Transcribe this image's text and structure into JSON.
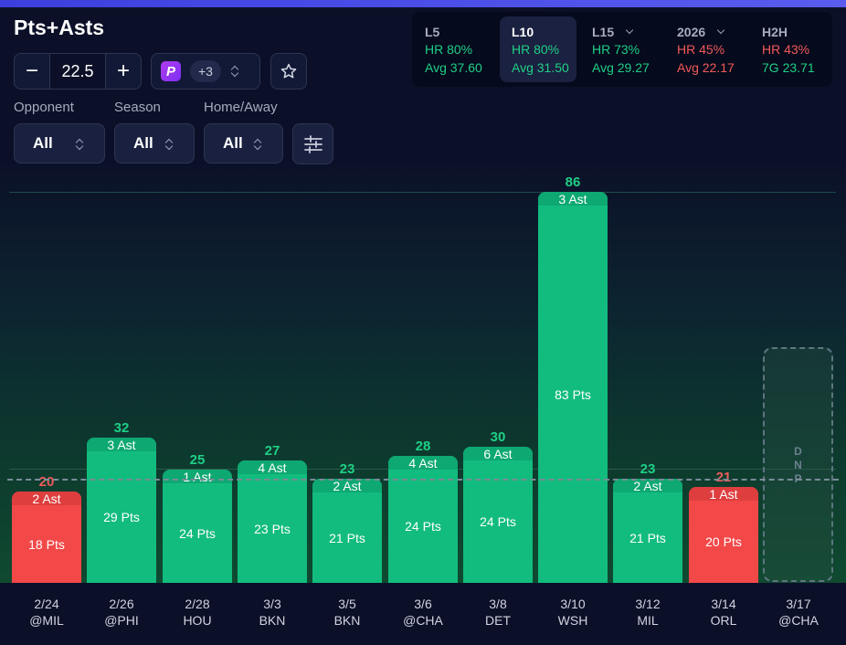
{
  "header": {
    "title": "Pts+Asts",
    "line_value": "22.5",
    "minus_label": "−",
    "plus_label": "+",
    "book_more": "+3"
  },
  "filters": [
    {
      "label": "Opponent",
      "value": "All"
    },
    {
      "label": "Season",
      "value": "All"
    },
    {
      "label": "Home/Away",
      "value": "All"
    }
  ],
  "stats": [
    {
      "label": "L5",
      "hr": "HR 80%",
      "avg": "Avg 37.60",
      "hr_color": "green",
      "avg_color": "green",
      "dropdown": false
    },
    {
      "label": "L10",
      "hr": "HR 80%",
      "avg": "Avg 31.50",
      "hr_color": "green",
      "avg_color": "green",
      "dropdown": false
    },
    {
      "label": "L15",
      "hr": "HR 73%",
      "avg": "Avg 29.27",
      "hr_color": "green",
      "avg_color": "green",
      "dropdown": true
    },
    {
      "label": "2026",
      "hr": "HR 45%",
      "avg": "Avg 22.17",
      "hr_color": "red",
      "avg_color": "red",
      "dropdown": true
    },
    {
      "label": "H2H",
      "hr": "HR 43%",
      "avg": "7G 23.71",
      "hr_color": "red",
      "avg_color": "green",
      "dropdown": false
    }
  ],
  "colors": {
    "over": "#12bc7e",
    "under": "#f24848",
    "over_text": "#1fcf86",
    "under_text": "#f25a5a"
  },
  "chart_data": {
    "type": "bar",
    "title": "Pts+Asts",
    "line": 22.5,
    "ylim": [
      0,
      86
    ],
    "categories": [
      "2/24 @MIL",
      "2/26 @PHI",
      "2/28 HOU",
      "3/3 BKN",
      "3/5 BKN",
      "3/6 @CHA",
      "3/8 DET",
      "3/10 WSH",
      "3/12 MIL",
      "3/14 ORL",
      "3/17 @CHA"
    ],
    "games": [
      {
        "date": "2/24",
        "opp": "@MIL",
        "total": "20",
        "total_num": 20,
        "ast": "2 Ast",
        "pts": "18 Pts",
        "result": "under"
      },
      {
        "date": "2/26",
        "opp": "@PHI",
        "total": "32",
        "total_num": 32,
        "ast": "3 Ast",
        "pts": "29 Pts",
        "result": "over"
      },
      {
        "date": "2/28",
        "opp": "HOU",
        "total": "25",
        "total_num": 25,
        "ast": "1 Ast",
        "pts": "24 Pts",
        "result": "over"
      },
      {
        "date": "3/3",
        "opp": "BKN",
        "total": "27",
        "total_num": 27,
        "ast": "4 Ast",
        "pts": "23 Pts",
        "result": "over"
      },
      {
        "date": "3/5",
        "opp": "BKN",
        "total": "23",
        "total_num": 23,
        "ast": "2 Ast",
        "pts": "21 Pts",
        "result": "over"
      },
      {
        "date": "3/6",
        "opp": "@CHA",
        "total": "28",
        "total_num": 28,
        "ast": "4 Ast",
        "pts": "24 Pts",
        "result": "over"
      },
      {
        "date": "3/8",
        "opp": "DET",
        "total": "30",
        "total_num": 30,
        "ast": "6 Ast",
        "pts": "24 Pts",
        "result": "over"
      },
      {
        "date": "3/10",
        "opp": "WSH",
        "total": "86",
        "total_num": 86,
        "ast": "3 Ast",
        "pts": "83 Pts",
        "result": "over"
      },
      {
        "date": "3/12",
        "opp": "MIL",
        "total": "23",
        "total_num": 23,
        "ast": "2 Ast",
        "pts": "21 Pts",
        "result": "over"
      },
      {
        "date": "3/14",
        "opp": "ORL",
        "total": "21",
        "total_num": 21,
        "ast": "1 Ast",
        "pts": "20 Pts",
        "result": "under"
      },
      {
        "date": "3/17",
        "opp": "@CHA",
        "total": "",
        "total_num": null,
        "ast": "",
        "pts": "",
        "result": "dnp",
        "dnp_text": "DNP"
      }
    ]
  }
}
